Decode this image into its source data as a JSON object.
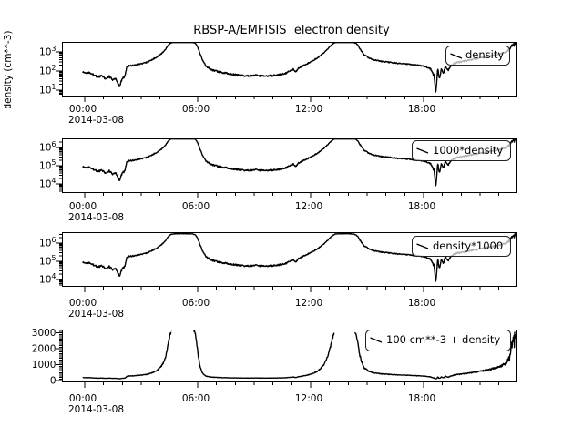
{
  "figure": {
    "title": "RBSP-A/EMFISIS  electron density",
    "y_axis_label": "density (cm**-3)"
  },
  "chart_data": {
    "type": "line",
    "title": "RBSP-A/EMFISIS  electron density",
    "background": "#ffffff",
    "line_color": "#000000",
    "legend_fill": "rgba(255,255,255,0.7)",
    "x_axis": {
      "unit": "hours since 2014-03-08 00:00",
      "range_hours": [
        -1.16,
        22.93
      ],
      "tick_values": [
        0,
        6,
        12,
        18
      ],
      "tick_labels": [
        "00:00",
        "06:00",
        "12:00",
        "18:00"
      ],
      "minor_tick_step_hours": 1,
      "date": "2014-03-08"
    },
    "panels": [
      {
        "legend": "density",
        "y_scale": "log",
        "transform": "density",
        "y_tick_values": [
          10,
          100,
          1000
        ],
        "y_tick_labels": [
          "10^1",
          "10^2",
          "10^3"
        ],
        "y_view_log10": [
          0.69,
          3.52
        ]
      },
      {
        "legend": "1000*density",
        "y_scale": "log",
        "transform": "density*1000",
        "y_tick_values": [
          10000,
          100000,
          1000000
        ],
        "y_tick_labels": [
          "10^4",
          "10^5",
          "10^6"
        ],
        "y_view_log10": [
          3.53,
          6.48
        ]
      },
      {
        "legend": "density*1000",
        "y_scale": "log",
        "transform": "density*1000",
        "y_tick_values": [
          10000,
          100000,
          1000000
        ],
        "y_tick_labels": [
          "10^4",
          "10^5",
          "10^6"
        ],
        "y_view_log10": [
          3.55,
          6.5
        ]
      },
      {
        "legend": "100 cm**-3 + density",
        "y_scale": "linear",
        "transform": "density+100",
        "y_tick_values": [
          0,
          1000,
          2000,
          3000
        ],
        "y_tick_labels": [
          "0",
          "1000",
          "2000",
          "3000"
        ],
        "y_view": [
          -30,
          3171
        ],
        "minor_tick_step": 100
      }
    ],
    "series_base": {
      "name": "electron density (cm**-3) vs hours",
      "keypoints": [
        [
          -0.1,
          85
        ],
        [
          0.2,
          80
        ],
        [
          0.5,
          62
        ],
        [
          0.7,
          48
        ],
        [
          0.9,
          58
        ],
        [
          1.1,
          40
        ],
        [
          1.3,
          52
        ],
        [
          1.5,
          34
        ],
        [
          1.65,
          44
        ],
        [
          1.75,
          22
        ],
        [
          1.85,
          16
        ],
        [
          1.95,
          32
        ],
        [
          2.05,
          45
        ],
        [
          2.15,
          55
        ],
        [
          2.22,
          160
        ],
        [
          2.35,
          185
        ],
        [
          2.6,
          200
        ],
        [
          2.85,
          225
        ],
        [
          3.1,
          250
        ],
        [
          3.35,
          300
        ],
        [
          3.6,
          400
        ],
        [
          3.85,
          560
        ],
        [
          4.1,
          850
        ],
        [
          4.3,
          1400
        ],
        [
          4.45,
          2400
        ],
        [
          4.6,
          3100
        ],
        [
          4.8,
          3300
        ],
        [
          5.3,
          3300
        ],
        [
          5.7,
          3250
        ],
        [
          5.88,
          2900
        ],
        [
          6.0,
          1800
        ],
        [
          6.15,
          700
        ],
        [
          6.3,
          300
        ],
        [
          6.45,
          180
        ],
        [
          6.6,
          140
        ],
        [
          6.8,
          110
        ],
        [
          7.1,
          92
        ],
        [
          7.5,
          78
        ],
        [
          7.9,
          66
        ],
        [
          8.3,
          58
        ],
        [
          8.7,
          55
        ],
        [
          9.1,
          60
        ],
        [
          9.5,
          53
        ],
        [
          9.9,
          57
        ],
        [
          10.3,
          62
        ],
        [
          10.7,
          78
        ],
        [
          10.95,
          105
        ],
        [
          11.1,
          125
        ],
        [
          11.2,
          88
        ],
        [
          11.35,
          140
        ],
        [
          11.6,
          190
        ],
        [
          11.85,
          250
        ],
        [
          12.1,
          340
        ],
        [
          12.4,
          520
        ],
        [
          12.7,
          900
        ],
        [
          12.95,
          1600
        ],
        [
          13.15,
          2500
        ],
        [
          13.3,
          3150
        ],
        [
          13.5,
          3300
        ],
        [
          14.0,
          3300
        ],
        [
          14.3,
          3150
        ],
        [
          14.5,
          2400
        ],
        [
          14.65,
          1300
        ],
        [
          14.85,
          700
        ],
        [
          15.1,
          480
        ],
        [
          15.4,
          380
        ],
        [
          15.8,
          320
        ],
        [
          16.2,
          285
        ],
        [
          16.6,
          255
        ],
        [
          17.0,
          235
        ],
        [
          17.4,
          215
        ],
        [
          17.8,
          195
        ],
        [
          18.1,
          170
        ],
        [
          18.35,
          135
        ],
        [
          18.55,
          60
        ],
        [
          18.65,
          6
        ],
        [
          18.75,
          130
        ],
        [
          18.85,
          40
        ],
        [
          18.95,
          150
        ],
        [
          19.05,
          65
        ],
        [
          19.15,
          180
        ],
        [
          19.3,
          110
        ],
        [
          19.45,
          200
        ],
        [
          19.6,
          240
        ],
        [
          19.8,
          280
        ],
        [
          20.2,
          330
        ],
        [
          20.6,
          400
        ],
        [
          21.0,
          480
        ],
        [
          21.4,
          560
        ],
        [
          21.8,
          680
        ],
        [
          22.1,
          800
        ],
        [
          22.35,
          950
        ],
        [
          22.55,
          1300
        ],
        [
          22.7,
          2000
        ],
        [
          22.78,
          2600
        ],
        [
          22.83,
          2300
        ],
        [
          22.87,
          3100
        ],
        [
          22.9,
          2800
        ],
        [
          22.93,
          3400
        ]
      ],
      "noise_log10_amplitude_keypoints": [
        [
          -0.1,
          0.05
        ],
        [
          2.1,
          0.05
        ],
        [
          2.4,
          0.035
        ],
        [
          4.4,
          0.02
        ],
        [
          4.7,
          0.012
        ],
        [
          5.8,
          0.012
        ],
        [
          6.3,
          0.03
        ],
        [
          6.8,
          0.045
        ],
        [
          10.6,
          0.045
        ],
        [
          11.5,
          0.035
        ],
        [
          13.0,
          0.02
        ],
        [
          13.4,
          0.012
        ],
        [
          14.3,
          0.012
        ],
        [
          14.8,
          0.03
        ],
        [
          18.2,
          0.028
        ],
        [
          18.5,
          0.07
        ],
        [
          19.5,
          0.055
        ],
        [
          20.0,
          0.035
        ],
        [
          22.4,
          0.04
        ],
        [
          22.6,
          0.09
        ],
        [
          22.93,
          0.09
        ]
      ]
    }
  }
}
